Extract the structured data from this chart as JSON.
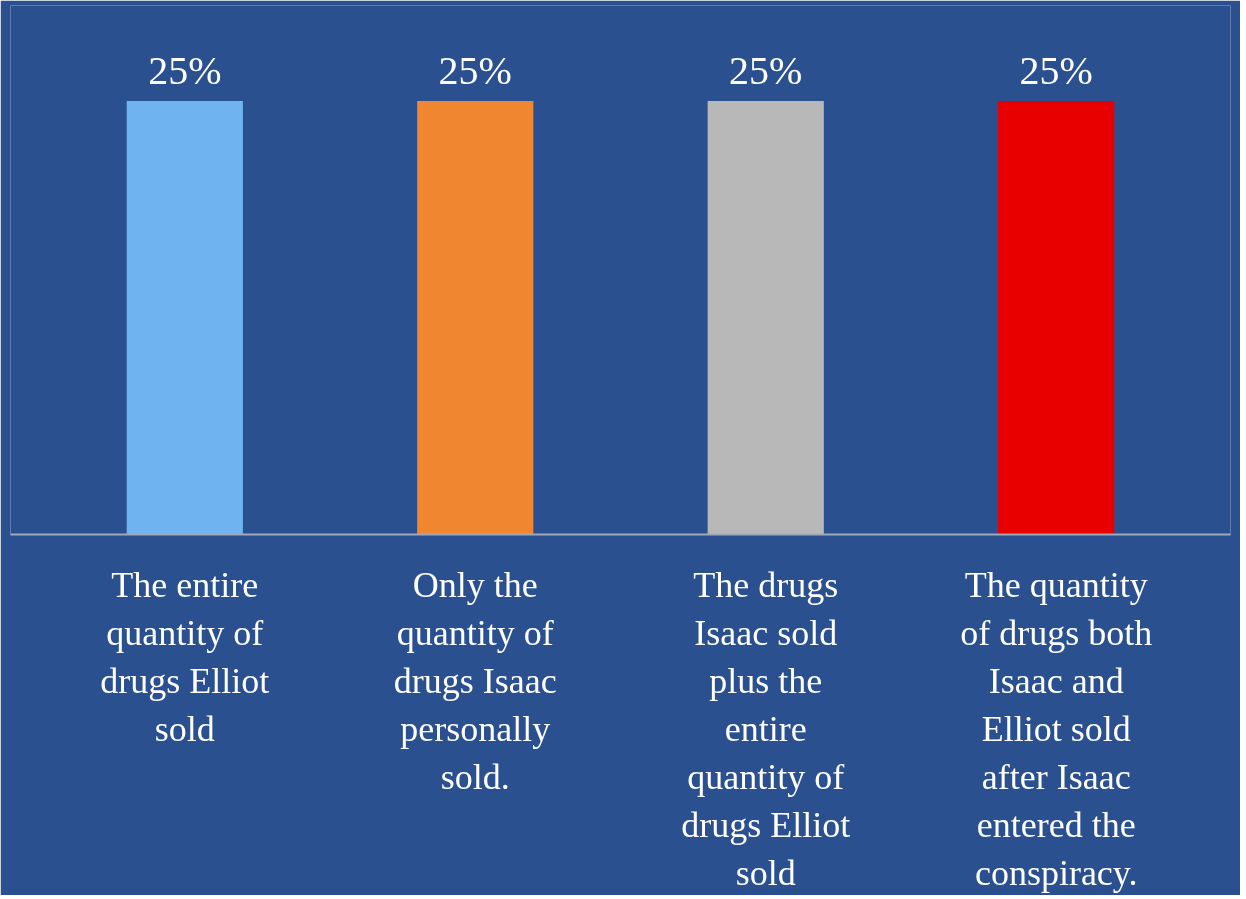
{
  "chart_data": {
    "type": "bar",
    "categories": [
      "The entire quantity of drugs Elliot sold",
      "Only the quantity of drugs Isaac personally sold.",
      "The drugs Isaac sold plus the entire quantity of drugs Elliot sold",
      "The quantity of drugs both Isaac and Elliot sold after Isaac entered the conspiracy."
    ],
    "values": [
      25,
      25,
      25,
      25
    ],
    "colors": [
      "#6fb4f0",
      "#f08630",
      "#b8b8b8",
      "#e80000"
    ],
    "value_labels": [
      "25%",
      "25%",
      "25%",
      "25%"
    ],
    "tick_labels": "x",
    "grid": false
  }
}
